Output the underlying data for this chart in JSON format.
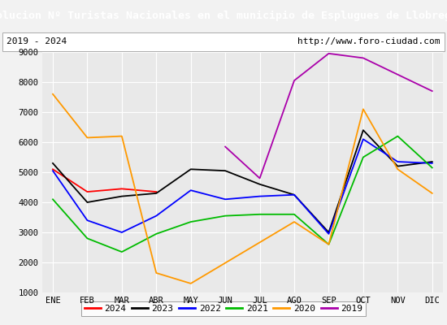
{
  "title": "Evolucion Nº Turistas Nacionales en el municipio de Esplugues de Llobregat",
  "subtitle_left": "2019 - 2024",
  "subtitle_right": "http://www.foro-ciudad.com",
  "months": [
    "ENE",
    "FEB",
    "MAR",
    "ABR",
    "MAY",
    "JUN",
    "JUL",
    "AGO",
    "SEP",
    "OCT",
    "NOV",
    "DIC"
  ],
  "ylim": [
    1000,
    9000
  ],
  "yticks": [
    1000,
    2000,
    3000,
    4000,
    5000,
    6000,
    7000,
    8000,
    9000
  ],
  "series": {
    "2024": {
      "color": "#ff0000",
      "data": [
        5100,
        4350,
        4450,
        4350,
        null,
        null,
        null,
        null,
        null,
        null,
        null,
        null
      ]
    },
    "2023": {
      "color": "#000000",
      "data": [
        5300,
        4000,
        4200,
        4300,
        5100,
        5050,
        4600,
        4250,
        3000,
        6400,
        5200,
        5350
      ]
    },
    "2022": {
      "color": "#0000ff",
      "data": [
        5050,
        3400,
        3000,
        3550,
        4400,
        4100,
        4200,
        4250,
        2950,
        6100,
        5350,
        5300
      ]
    },
    "2021": {
      "color": "#00bb00",
      "data": [
        4100,
        2800,
        2350,
        2950,
        3350,
        3550,
        3600,
        3600,
        2600,
        5500,
        6200,
        5150
      ]
    },
    "2020": {
      "color": "#ff9900",
      "data": [
        7600,
        6150,
        6200,
        1650,
        1300,
        null,
        null,
        3350,
        2600,
        7100,
        5100,
        4300
      ]
    },
    "2019": {
      "color": "#aa00aa",
      "data": [
        null,
        null,
        null,
        null,
        null,
        5850,
        4800,
        8050,
        8950,
        8800,
        null,
        7700
      ]
    }
  },
  "legend_order": [
    "2024",
    "2023",
    "2022",
    "2021",
    "2020",
    "2019"
  ],
  "title_bg_color": "#4472c4",
  "title_font_color": "white",
  "plot_bg_color": "#e9e9e9",
  "outer_bg_color": "#f2f2f2",
  "grid_color": "#ffffff",
  "title_fontsize": 9.5,
  "axis_fontsize": 7.5
}
